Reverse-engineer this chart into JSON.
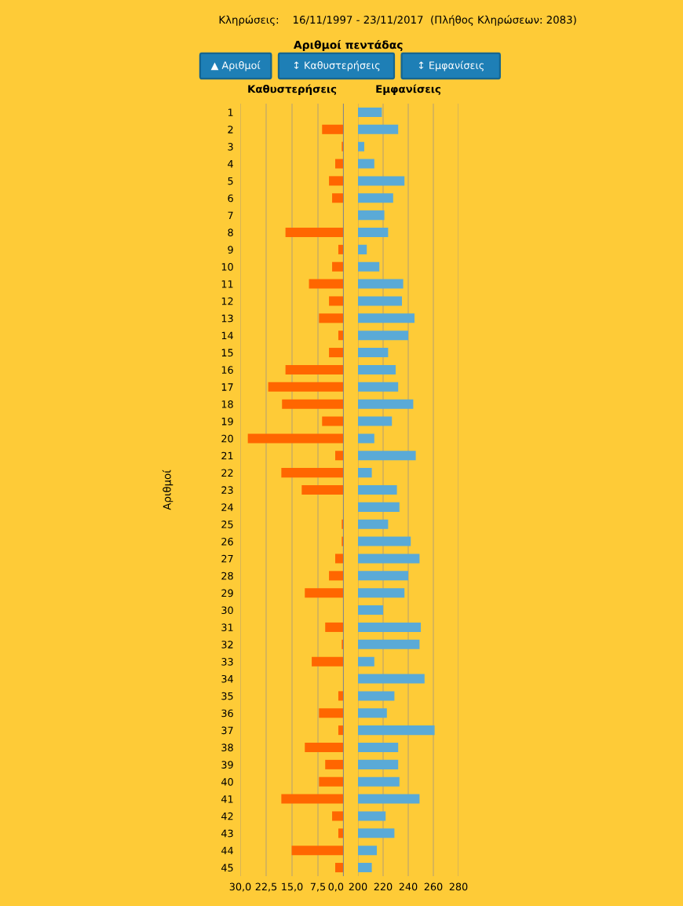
{
  "chart_data": [
    {
      "type": "other",
      "subtitle": "Κληρώσεις:    16/11/1997 - 23/11/2017  (Πλήθος Κληρώσεων: 2083)",
      "title": "Αριθμοί πεντάδας",
      "annotations": [
        "▲ Αριθμοί",
        "↕ Καθυστερήσεις",
        "↕ Εμφανίσεις"
      ]
    },
    {
      "type": "bar",
      "orientation": "horizontal",
      "title": "Καθυστερήσεις",
      "ylabel": "Αριθμοί",
      "categories": [
        "1",
        "2",
        "3",
        "4",
        "5",
        "6",
        "7",
        "8",
        "9",
        "10",
        "11",
        "12",
        "13",
        "14",
        "15",
        "16",
        "17",
        "18",
        "19",
        "20",
        "21",
        "22",
        "23",
        "24",
        "25",
        "26",
        "27",
        "28",
        "29",
        "30",
        "31",
        "32",
        "33",
        "34",
        "35",
        "36",
        "37",
        "38",
        "39",
        "40",
        "41",
        "42",
        "43",
        "44",
        "45"
      ],
      "series": [
        {
          "color": "#ff6600",
          "values": [
            0,
            6.3,
            0.6,
            2.5,
            4.3,
            3.4,
            0,
            16.9,
            1.6,
            3.4,
            10.1,
            4.3,
            7.2,
            1.6,
            4.3,
            16.9,
            21.9,
            17.9,
            6.3,
            27.8,
            2.5,
            18.1,
            12.2,
            0,
            0.6,
            0.6,
            2.5,
            4.3,
            11.3,
            0,
            5.4,
            0.6,
            9.3,
            0,
            1.6,
            7.2,
            1.6,
            11.3,
            5.4,
            7.2,
            18.1,
            3.4,
            1.6,
            15.1,
            2.5
          ]
        }
      ],
      "xlim": [
        30,
        0
      ],
      "xticks": [
        {
          "value": 30,
          "label": "30,0"
        },
        {
          "value": 22.5,
          "label": "22,5"
        },
        {
          "value": 15,
          "label": "15,0"
        },
        {
          "value": 7.5,
          "label": "7,5"
        },
        {
          "value": 0,
          "label": "0,0"
        }
      ],
      "grid": "x"
    },
    {
      "type": "bar",
      "orientation": "horizontal",
      "title": "Εμφανίσεις",
      "categories": [
        "1",
        "2",
        "3",
        "4",
        "5",
        "6",
        "7",
        "8",
        "9",
        "10",
        "11",
        "12",
        "13",
        "14",
        "15",
        "16",
        "17",
        "18",
        "19",
        "20",
        "21",
        "22",
        "23",
        "24",
        "25",
        "26",
        "27",
        "28",
        "29",
        "30",
        "31",
        "32",
        "33",
        "34",
        "35",
        "36",
        "37",
        "38",
        "39",
        "40",
        "41",
        "42",
        "43",
        "44",
        "45"
      ],
      "series": [
        {
          "color": "#5aaad7",
          "values": [
            219,
            232,
            205,
            213,
            237,
            228,
            221,
            224,
            207,
            217,
            236,
            235,
            245,
            240,
            224,
            230,
            232,
            244,
            227,
            213,
            246,
            211,
            231,
            233,
            224,
            242,
            249,
            240,
            237,
            220,
            250,
            249,
            213,
            253,
            229,
            223,
            261,
            232,
            232,
            233,
            249,
            222,
            229,
            215,
            211
          ]
        }
      ],
      "xlim": [
        200,
        280
      ],
      "xticks": [
        200,
        220,
        240,
        260,
        280
      ],
      "grid": "x",
      "tick_labels": "x"
    }
  ]
}
